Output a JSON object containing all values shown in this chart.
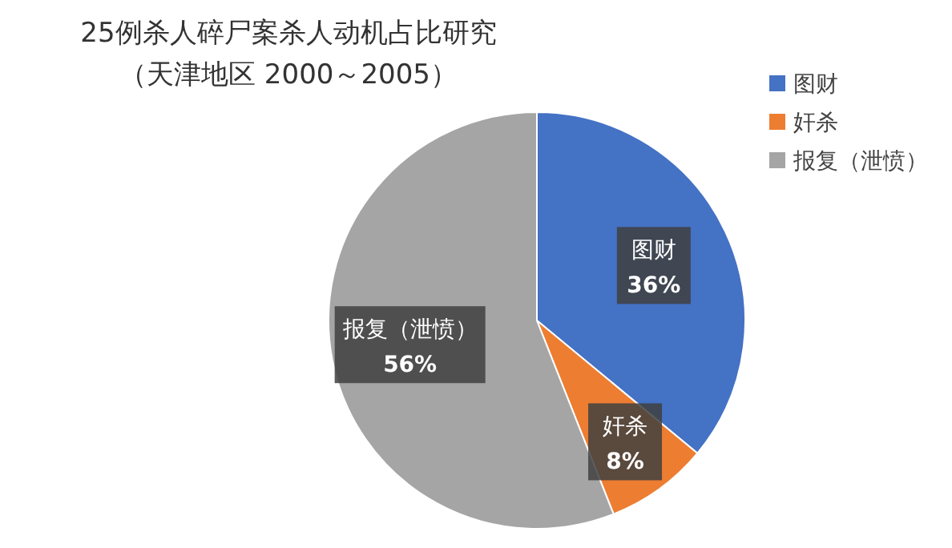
{
  "chart_data": {
    "type": "pie",
    "title": "25例杀人碎尸案杀人动机占比研究",
    "subtitle": "（天津地区 2000～2005）",
    "categories": [
      "图财",
      "奸杀",
      "报复（泄愤）"
    ],
    "values": [
      36,
      8,
      56
    ],
    "value_labels": [
      "36%",
      "8%",
      "56%"
    ],
    "colors": [
      "#4472c4",
      "#ed7d31",
      "#a5a5a5"
    ],
    "legend": "top right"
  }
}
